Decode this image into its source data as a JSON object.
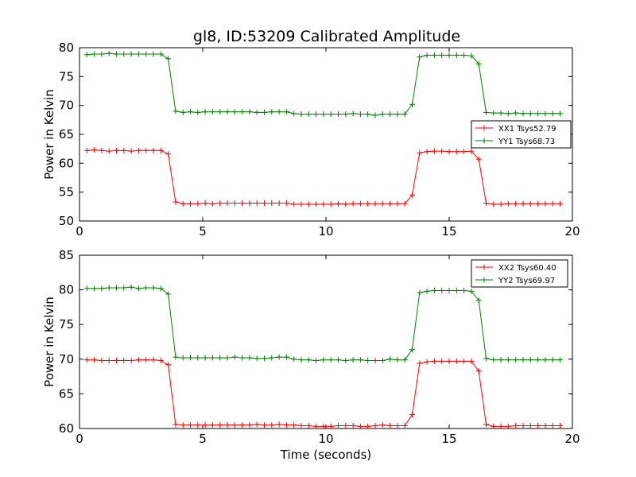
{
  "title": "gl8, ID:53209 Calibrated Amplitude",
  "chart_data": [
    {
      "type": "line",
      "ylabel": "Power in Kelvin",
      "xlabel": "",
      "xlim": [
        0,
        20
      ],
      "ylim": [
        50,
        80
      ],
      "xticks": [
        0,
        5,
        10,
        15,
        20
      ],
      "yticks": [
        50,
        55,
        60,
        65,
        70,
        75,
        80
      ],
      "legend": "right",
      "series": [
        {
          "name": "XX1 Tsys52.79",
          "color": "#ff0000",
          "x": [
            0.3,
            0.6,
            0.9,
            1.2,
            1.5,
            1.8,
            2.1,
            2.4,
            2.7,
            3.0,
            3.3,
            3.6,
            3.9,
            4.2,
            4.5,
            4.8,
            5.1,
            5.4,
            5.7,
            6.0,
            6.3,
            6.6,
            6.9,
            7.2,
            7.5,
            7.8,
            8.1,
            8.4,
            8.7,
            9.0,
            9.3,
            9.6,
            9.9,
            10.2,
            10.5,
            10.8,
            11.1,
            11.4,
            11.7,
            12.0,
            12.3,
            12.6,
            12.9,
            13.2,
            13.5,
            13.8,
            14.1,
            14.4,
            14.7,
            15.0,
            15.3,
            15.6,
            15.9,
            16.2,
            16.5,
            16.8,
            17.1,
            17.4,
            17.7,
            18.0,
            18.3,
            18.6,
            18.9,
            19.2,
            19.5
          ],
          "values": [
            62.2,
            62.3,
            62.2,
            62.1,
            62.2,
            62.2,
            62.1,
            62.2,
            62.2,
            62.2,
            62.2,
            61.6,
            53.3,
            53.0,
            53.0,
            53.0,
            53.1,
            53.0,
            53.1,
            53.1,
            53.1,
            53.1,
            53.1,
            53.1,
            53.1,
            53.1,
            53.1,
            53.1,
            52.9,
            52.9,
            52.9,
            52.9,
            52.9,
            52.9,
            53.0,
            52.9,
            53.0,
            53.0,
            53.0,
            53.0,
            53.0,
            53.0,
            53.0,
            53.0,
            54.5,
            61.8,
            62.0,
            62.1,
            62.1,
            62.0,
            62.0,
            62.0,
            62.1,
            60.7,
            53.1,
            52.9,
            52.9,
            53.0,
            53.0,
            53.0,
            53.0,
            53.0,
            53.0,
            53.0,
            53.0
          ]
        },
        {
          "name": "YY1 Tsys68.73",
          "color": "#008000",
          "x": [
            0.3,
            0.6,
            0.9,
            1.2,
            1.5,
            1.8,
            2.1,
            2.4,
            2.7,
            3.0,
            3.3,
            3.6,
            3.9,
            4.2,
            4.5,
            4.8,
            5.1,
            5.4,
            5.7,
            6.0,
            6.3,
            6.6,
            6.9,
            7.2,
            7.5,
            7.8,
            8.1,
            8.4,
            8.7,
            9.0,
            9.3,
            9.6,
            9.9,
            10.2,
            10.5,
            10.8,
            11.1,
            11.4,
            11.7,
            12.0,
            12.3,
            12.6,
            12.9,
            13.2,
            13.5,
            13.8,
            14.1,
            14.4,
            14.7,
            15.0,
            15.3,
            15.6,
            15.9,
            16.2,
            16.5,
            16.8,
            17.1,
            17.4,
            17.7,
            18.0,
            18.3,
            18.6,
            18.9,
            19.2,
            19.5
          ],
          "values": [
            78.8,
            78.9,
            78.9,
            79.0,
            78.9,
            78.9,
            78.9,
            78.9,
            78.9,
            78.9,
            78.9,
            78.1,
            69.0,
            68.8,
            68.9,
            68.8,
            68.9,
            68.9,
            68.9,
            68.9,
            68.9,
            68.9,
            68.9,
            68.8,
            68.8,
            68.9,
            68.9,
            68.9,
            68.6,
            68.5,
            68.5,
            68.5,
            68.5,
            68.5,
            68.5,
            68.5,
            68.6,
            68.5,
            68.5,
            68.3,
            68.5,
            68.5,
            68.5,
            68.5,
            70.2,
            78.4,
            78.7,
            78.7,
            78.7,
            78.7,
            78.7,
            78.7,
            78.6,
            77.2,
            68.8,
            68.7,
            68.7,
            68.6,
            68.7,
            68.6,
            68.6,
            68.6,
            68.6,
            68.6,
            68.6
          ]
        }
      ]
    },
    {
      "type": "line",
      "ylabel": "Power in Kelvin",
      "xlabel": "Time (seconds)",
      "xlim": [
        0,
        20
      ],
      "ylim": [
        60,
        85
      ],
      "xticks": [
        0,
        5,
        10,
        15,
        20
      ],
      "yticks": [
        60,
        65,
        70,
        75,
        80,
        85
      ],
      "legend": "top-right",
      "series": [
        {
          "name": "XX2 Tsys60.40",
          "color": "#ff0000",
          "x": [
            0.3,
            0.6,
            0.9,
            1.2,
            1.5,
            1.8,
            2.1,
            2.4,
            2.7,
            3.0,
            3.3,
            3.6,
            3.9,
            4.2,
            4.5,
            4.8,
            5.1,
            5.4,
            5.7,
            6.0,
            6.3,
            6.6,
            6.9,
            7.2,
            7.5,
            7.8,
            8.1,
            8.4,
            8.7,
            9.0,
            9.3,
            9.6,
            9.9,
            10.2,
            10.5,
            10.8,
            11.1,
            11.4,
            11.7,
            12.0,
            12.3,
            12.6,
            12.9,
            13.2,
            13.5,
            13.8,
            14.1,
            14.4,
            14.7,
            15.0,
            15.3,
            15.6,
            15.9,
            16.2,
            16.5,
            16.8,
            17.1,
            17.4,
            17.7,
            18.0,
            18.3,
            18.6,
            18.9,
            19.2,
            19.5
          ],
          "values": [
            69.9,
            69.9,
            69.8,
            69.8,
            69.8,
            69.8,
            69.8,
            69.9,
            69.9,
            69.9,
            69.8,
            69.2,
            60.6,
            60.5,
            60.5,
            60.5,
            60.5,
            60.5,
            60.5,
            60.5,
            60.5,
            60.5,
            60.5,
            60.6,
            60.5,
            60.5,
            60.6,
            60.5,
            60.5,
            60.4,
            60.4,
            60.3,
            60.3,
            60.3,
            60.4,
            60.4,
            60.4,
            60.3,
            60.3,
            60.4,
            60.5,
            60.4,
            60.4,
            60.4,
            62.0,
            69.4,
            69.6,
            69.7,
            69.7,
            69.7,
            69.7,
            69.7,
            69.7,
            68.3,
            60.6,
            60.3,
            60.3,
            60.3,
            60.4,
            60.4,
            60.4,
            60.4,
            60.4,
            60.4,
            60.4
          ]
        },
        {
          "name": "YY2 Tsys69.97",
          "color": "#008000",
          "x": [
            0.3,
            0.6,
            0.9,
            1.2,
            1.5,
            1.8,
            2.1,
            2.4,
            2.7,
            3.0,
            3.3,
            3.6,
            3.9,
            4.2,
            4.5,
            4.8,
            5.1,
            5.4,
            5.7,
            6.0,
            6.3,
            6.6,
            6.9,
            7.2,
            7.5,
            7.8,
            8.1,
            8.4,
            8.7,
            9.0,
            9.3,
            9.6,
            9.9,
            10.2,
            10.5,
            10.8,
            11.1,
            11.4,
            11.7,
            12.0,
            12.3,
            12.6,
            12.9,
            13.2,
            13.5,
            13.8,
            14.1,
            14.4,
            14.7,
            15.0,
            15.3,
            15.6,
            15.9,
            16.2,
            16.5,
            16.8,
            17.1,
            17.4,
            17.7,
            18.0,
            18.3,
            18.6,
            18.9,
            19.2,
            19.5
          ],
          "values": [
            80.2,
            80.2,
            80.2,
            80.3,
            80.3,
            80.3,
            80.4,
            80.2,
            80.3,
            80.3,
            80.2,
            79.4,
            70.3,
            70.2,
            70.2,
            70.2,
            70.2,
            70.2,
            70.2,
            70.2,
            70.3,
            70.2,
            70.2,
            70.1,
            70.1,
            70.2,
            70.3,
            70.3,
            70.0,
            69.9,
            69.9,
            69.8,
            69.9,
            69.9,
            69.9,
            69.8,
            69.9,
            69.9,
            69.8,
            69.8,
            69.8,
            70.0,
            69.9,
            69.9,
            71.4,
            79.6,
            79.8,
            79.9,
            79.9,
            79.9,
            79.9,
            79.9,
            79.8,
            78.5,
            70.1,
            69.9,
            69.9,
            69.9,
            69.9,
            69.9,
            69.9,
            69.9,
            69.9,
            69.9,
            69.9
          ]
        }
      ]
    }
  ]
}
